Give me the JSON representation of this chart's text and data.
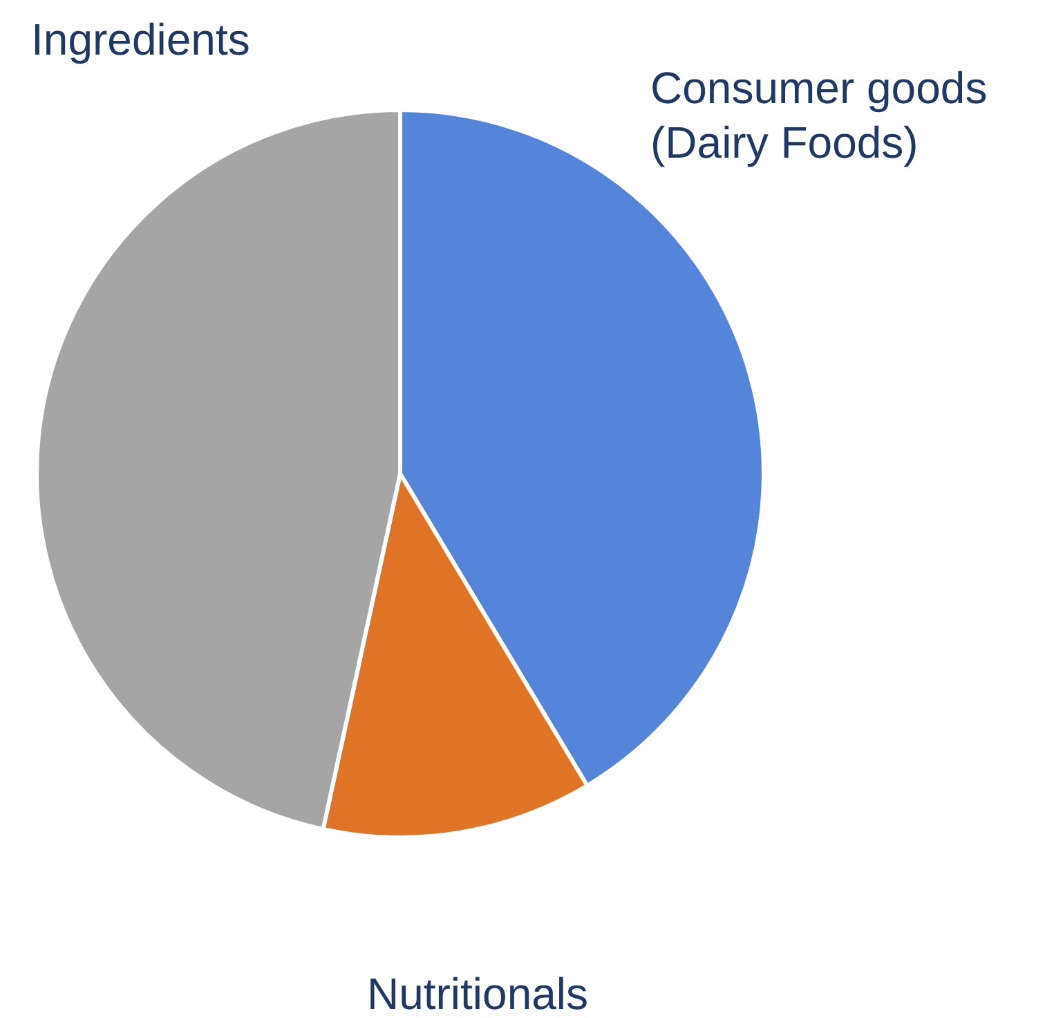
{
  "chart_data": {
    "type": "pie",
    "categories": [
      "Consumer goods\n(Dairy Foods)",
      "Nutritionals",
      "Ingredients"
    ],
    "values": [
      41.4,
      12.0,
      46.6
    ],
    "colors": [
      "#5585d8",
      "#e07426",
      "#a5a5a5"
    ]
  }
}
